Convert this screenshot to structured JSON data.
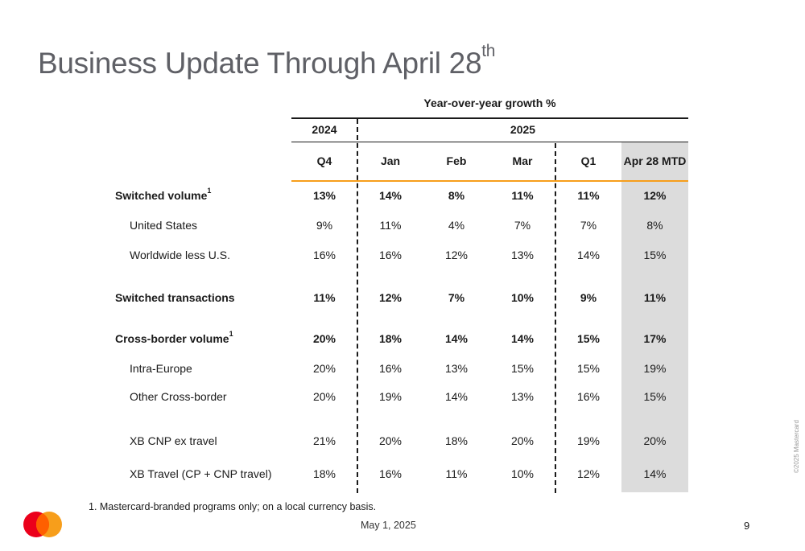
{
  "title": {
    "main": "Business Update Through April 28",
    "sup": "th"
  },
  "table": {
    "caption": "Year-over-year growth %",
    "years": [
      "2024",
      "2025"
    ],
    "columns": [
      "Q4",
      "Jan",
      "Feb",
      "Mar",
      "Q1",
      "Apr 28 MTD"
    ],
    "rows": [
      {
        "label": "Switched volume",
        "sup": "1",
        "bold": true,
        "values": [
          "13%",
          "14%",
          "8%",
          "11%",
          "11%",
          "12%"
        ]
      },
      {
        "label": "United States",
        "sup": "",
        "bold": false,
        "values": [
          "9%",
          "11%",
          "4%",
          "7%",
          "7%",
          "8%"
        ]
      },
      {
        "label": "Worldwide less U.S.",
        "sup": "",
        "bold": false,
        "values": [
          "16%",
          "16%",
          "12%",
          "13%",
          "14%",
          "15%"
        ]
      },
      {
        "label": "Switched transactions",
        "sup": "",
        "bold": true,
        "values": [
          "11%",
          "12%",
          "7%",
          "10%",
          "9%",
          "11%"
        ]
      },
      {
        "label": "Cross-border volume",
        "sup": "1",
        "bold": true,
        "values": [
          "20%",
          "18%",
          "14%",
          "14%",
          "15%",
          "17%"
        ]
      },
      {
        "label": "Intra-Europe",
        "sup": "",
        "bold": false,
        "values": [
          "20%",
          "16%",
          "13%",
          "15%",
          "15%",
          "19%"
        ]
      },
      {
        "label": "Other Cross-border",
        "sup": "",
        "bold": false,
        "values": [
          "20%",
          "19%",
          "14%",
          "13%",
          "16%",
          "15%"
        ]
      },
      {
        "label": "XB CNP ex travel",
        "sup": "",
        "bold": false,
        "values": [
          "21%",
          "20%",
          "18%",
          "20%",
          "19%",
          "20%"
        ]
      },
      {
        "label": "XB Travel (CP + CNP travel)",
        "sup": "",
        "bold": false,
        "values": [
          "18%",
          "16%",
          "11%",
          "10%",
          "12%",
          "14%"
        ]
      }
    ]
  },
  "footnote": "1.  Mastercard-branded programs only; on a local currency basis.",
  "footer": {
    "date": "May 1, 2025",
    "page": "9",
    "copyright": "©2025 Mastercard"
  },
  "colors": {
    "accent": "#f79e1b",
    "highlight": "#dcdcdc",
    "logo_red": "#eb001b",
    "logo_orange": "#f79e1b"
  },
  "logo": {
    "icon": "mastercard-logo-icon"
  }
}
